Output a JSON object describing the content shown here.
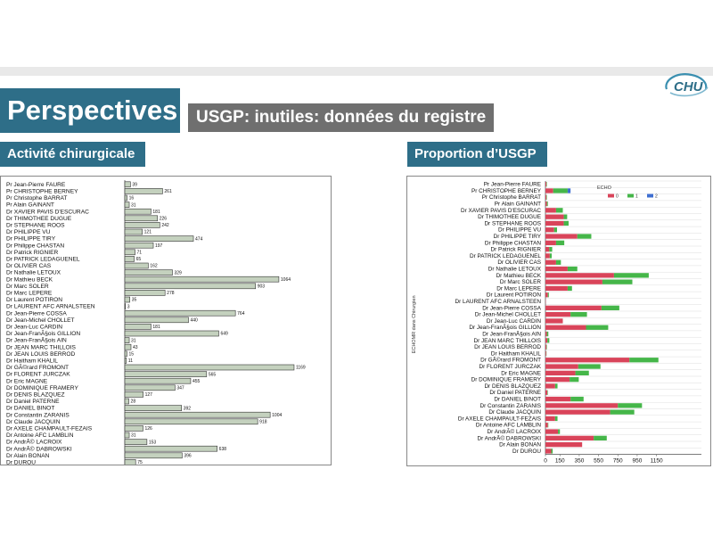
{
  "header": {
    "title": "Perspectives",
    "subtitle": "USGP: inutiles: données du registre",
    "logo_text": "CHU"
  },
  "sections": {
    "left": "Activité chirurgicale",
    "right": "Proportion d’USGP"
  },
  "chart_data": [
    {
      "type": "bar",
      "orientation": "horizontal",
      "categories": [
        "Pr Jean-Pierre FAURE",
        "Pr CHRISTOPHE BERNEY",
        "Pr Christophe BARRAT",
        "Pr Alain GAINANT",
        "Dr XAVIER PAVIS D'ESCURAC",
        "Dr THIMOTHEE DUGUE",
        "Dr STEPHANE ROOS",
        "Dr PHILIPPE VU",
        "Dr PHILIPPE TIRY",
        "Dr Philippe CHASTAN",
        "Dr Patrick RIGNIER",
        "Dr PATRICK LEDAGUENEL",
        "Dr OLIVIER CAS",
        "Dr Nathalie LETOUX",
        "Dr Mathieu BECK",
        "Dr Marc SOLER",
        "Dr Marc LEPERE",
        "Dr Laurent POTIRON",
        "Dr LAURENT AFC ARNALSTEEN",
        "Dr Jean-Pierre COSSA",
        "Dr Jean-Michel CHOLLET",
        "Dr Jean-Luc CARDIN",
        "Dr Jean-FranÃ§ois GILLION",
        "Dr Jean-FranÃ§ois AIN",
        "Dr JEAN MARC THILLOIS",
        "Dr JEAN LOUIS BERROD",
        "Dr Haitham KHALIL",
        "Dr GÃ©rard FROMONT",
        "Dr FLORENT JURCZAK",
        "Dr Eric MAGNE",
        "Dr DOMINIQUE FRAMERY",
        "Dr DENIS BLAZQUEZ",
        "Dr Daniel PATERNE",
        "Dr DANIEL BINOT",
        "Dr Constantin ZARANIS",
        "Dr Claude JACQUIN",
        "Dr AXELE CHAMPAULT-FEZAIS",
        "Dr Antoine AFC LAMBLIN",
        "Dr AndrÃ© LACROIX",
        "Dr AndrÃ© DABROWSKI",
        "Dr Alain BONAN",
        "Dr DUROU"
      ],
      "values": [
        39,
        261,
        16,
        31,
        181,
        226,
        242,
        121,
        474,
        197,
        71,
        65,
        162,
        329,
        1064,
        903,
        278,
        35,
        3,
        764,
        440,
        181,
        649,
        31,
        43,
        15,
        11,
        1169,
        565,
        455,
        347,
        127,
        28,
        392,
        1004,
        918,
        126,
        31,
        153,
        638,
        396,
        75
      ],
      "xlim": [
        0,
        1200
      ]
    },
    {
      "type": "bar",
      "orientation": "horizontal",
      "stacked": true,
      "ylabel": "ECHOMR dans Chirurgien",
      "legend_title": "ECHO",
      "legend_position": "top-right",
      "xticks": [
        "0",
        "150",
        "350",
        "550",
        "750",
        "950",
        "1150"
      ],
      "categories": [
        "Pr Jean-Pierre FAURE",
        "Pr CHRISTOPHE BERNEY",
        "Pr Christophe BARRAT",
        "Pr Alain GAINANT",
        "Dr XAVIER PAVIS D'ESCURAC",
        "Dr THIMOTHEE DUGUE",
        "Dr STEPHANE ROOS",
        "Dr PHILIPPE VU",
        "Dr PHILIPPE TIRY",
        "Dr Philippe CHASTAN",
        "Dr Patrick RIGNIER",
        "Dr PATRICK LEDAGUENEL",
        "Dr OLIVIER CAS",
        "Dr Nathalie LETOUX",
        "Dr Mathieu BECK",
        "Dr Marc SOLER",
        "Dr Marc LEPERE",
        "Dr Laurent POTIRON",
        "Dr LAURENT AFC ARNALSTEEN",
        "Dr Jean-Pierre COSSA",
        "Dr Jean-Michel CHOLLET",
        "Dr Jean-Luc CARDIN",
        "Dr Jean-FranÃ§ois GILLION",
        "Dr Jean-FranÃ§ois AIN",
        "Dr JEAN MARC THILLOIS",
        "Dr JEAN LOUIS BERROD",
        "Dr Haitham KHALIL",
        "Dr GÃ©rard FROMONT",
        "Dr FLORENT JURCZAK",
        "Dr Eric MAGNE",
        "Dr DOMINIQUE FRAMERY",
        "Dr DENIS BLAZQUEZ",
        "Dr Daniel PATERNE",
        "Dr DANIEL BINOT",
        "Dr Constantin ZARANIS",
        "Dr Claude JACQUIN",
        "Dr AXELE CHAMPAULT-FEZAIS",
        "Dr Antoine AFC LAMBLIN",
        "Dr AndrÃ© LACROIX",
        "Dr AndrÃ© DABROWSKI",
        "Dr Alain BONAN",
        "Dr DUROU"
      ],
      "series": [
        {
          "name": "0",
          "color": "#d9445a",
          "values": [
            10,
            80,
            10,
            15,
            110,
            190,
            190,
            90,
            330,
            110,
            40,
            45,
            110,
            230,
            710,
            590,
            230,
            25,
            3,
            580,
            260,
            180,
            420,
            15,
            20,
            10,
            8,
            870,
            340,
            310,
            250,
            100,
            20,
            260,
            750,
            670,
            100,
            25,
            130,
            500,
            380,
            60
          ]
        },
        {
          "name": "1",
          "color": "#45b649",
          "values": [
            5,
            150,
            5,
            10,
            70,
            35,
            50,
            30,
            145,
            85,
            30,
            20,
            50,
            100,
            360,
            310,
            45,
            10,
            0,
            185,
            170,
            0,
            230,
            15,
            20,
            5,
            3,
            300,
            230,
            140,
            95,
            25,
            5,
            135,
            250,
            250,
            25,
            5,
            20,
            135,
            0,
            15
          ]
        },
        {
          "name": "2",
          "color": "#3f6fd1",
          "values": [
            0,
            30,
            0,
            0,
            0,
            0,
            0,
            0,
            0,
            0,
            0,
            0,
            0,
            0,
            0,
            0,
            0,
            0,
            0,
            0,
            0,
            0,
            0,
            0,
            0,
            0,
            0,
            0,
            0,
            0,
            0,
            0,
            0,
            0,
            0,
            0,
            0,
            0,
            0,
            0,
            0,
            0
          ]
        }
      ]
    }
  ]
}
